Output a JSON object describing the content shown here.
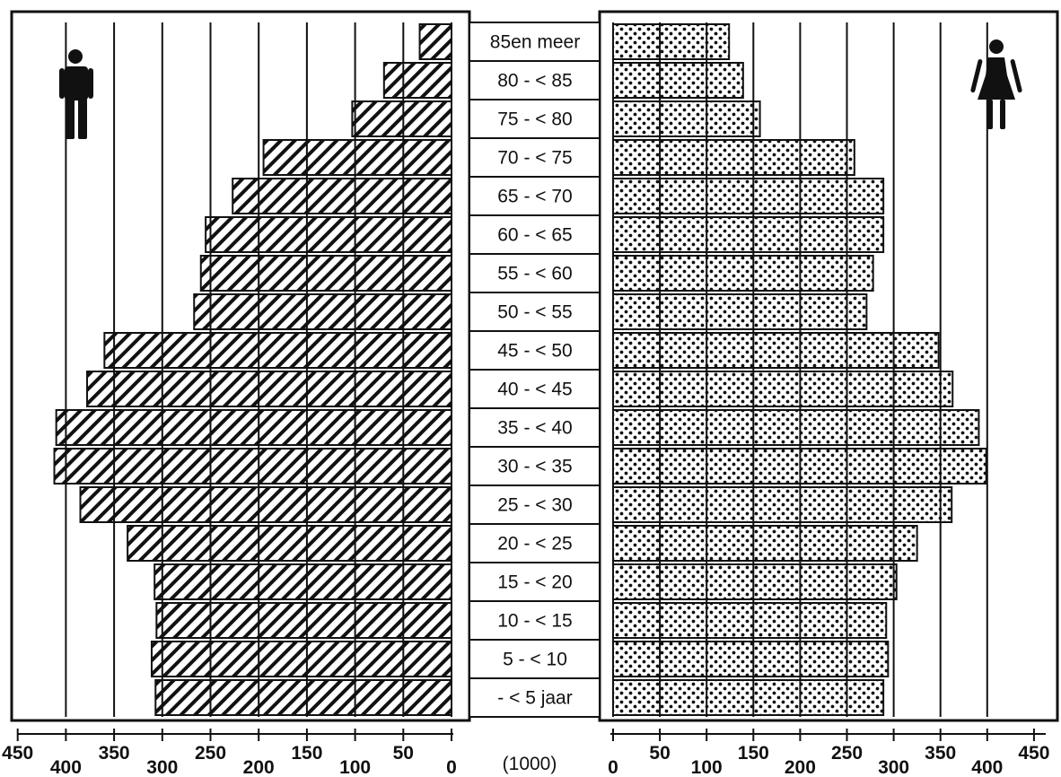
{
  "chart_data": {
    "type": "bar",
    "orientation": "horizontal",
    "layout": "population-pyramid",
    "age_groups": [
      "- < 5 jaar",
      "5 - < 10",
      "10 - < 15",
      "15 - < 20",
      "20 - < 25",
      "25 - < 30",
      "30 - < 35",
      "35 - < 40",
      "40 - < 45",
      "45 - < 50",
      "50 - < 55",
      "55 - < 60",
      "60 - < 65",
      "65 - < 70",
      "70 - < 75",
      "75 - < 80",
      "80 - < 85",
      "85en meer"
    ],
    "series": [
      {
        "values": [
          307,
          311,
          306,
          308,
          336,
          385,
          412,
          410,
          378,
          360,
          267,
          260,
          255,
          227,
          195,
          103,
          70,
          33
        ],
        "fill": "hatched",
        "side": "left",
        "icon": "male-figure-icon"
      },
      {
        "values": [
          289,
          294,
          292,
          303,
          325,
          362,
          399,
          391,
          363,
          348,
          271,
          278,
          289,
          289,
          258,
          157,
          139,
          124
        ],
        "fill": "dotted",
        "side": "right",
        "icon": "female-figure-icon"
      }
    ],
    "left_axis": {
      "ticks": [
        450,
        400,
        350,
        300,
        250,
        200,
        150,
        100,
        50,
        0
      ],
      "range": [
        450,
        0
      ]
    },
    "right_axis": {
      "ticks": [
        0,
        50,
        100,
        150,
        200,
        250,
        300,
        350,
        400,
        450
      ],
      "range": [
        0,
        450
      ]
    },
    "unit_label": "(1000)",
    "grid": true
  }
}
